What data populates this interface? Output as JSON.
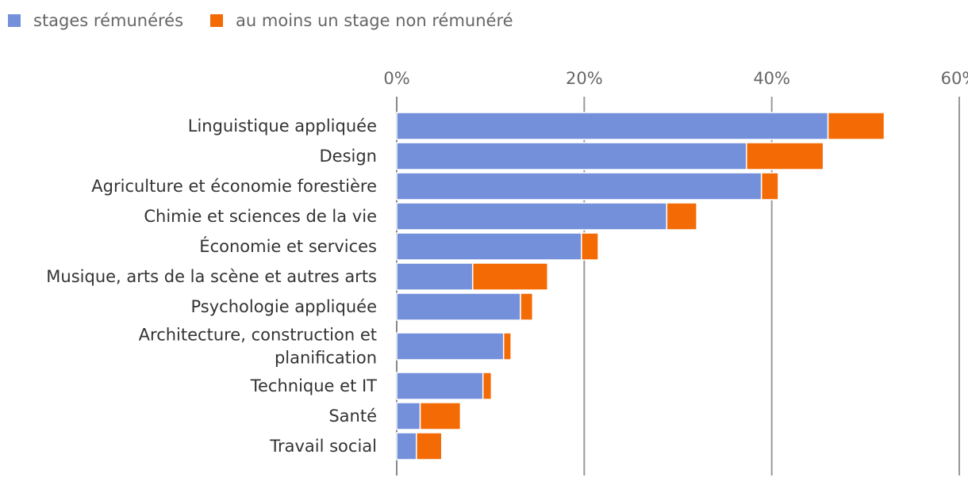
{
  "chart_data": {
    "type": "bar",
    "orientation": "horizontal",
    "stacked": true,
    "title": "",
    "xlabel": "",
    "ylabel": "",
    "xlim": [
      0,
      60
    ],
    "ticks": [
      "0%",
      "20%",
      "40%",
      "60%"
    ],
    "tick_values": [
      0,
      20,
      40,
      60
    ],
    "legend_position": "top-left",
    "categories": [
      [
        "Linguistique appliquée"
      ],
      [
        "Design"
      ],
      [
        "Agriculture et économie forestière"
      ],
      [
        "Chimie et sciences de la vie"
      ],
      [
        "Économie et services"
      ],
      [
        "Musique, arts de la scène et autres arts"
      ],
      [
        "Psychologie appliquée"
      ],
      [
        "Architecture, construction et",
        "planification"
      ],
      [
        "Technique et IT"
      ],
      [
        "Santé"
      ],
      [
        "Travail social"
      ]
    ],
    "series": [
      {
        "name": "stages rémunérés",
        "color": "#7490db",
        "values": [
          46.0,
          37.3,
          38.9,
          28.8,
          19.7,
          8.1,
          13.2,
          11.4,
          9.2,
          2.5,
          2.1
        ]
      },
      {
        "name": "au moins un stage non rémunéré",
        "color": "#f46a05",
        "values": [
          6.0,
          8.2,
          1.8,
          3.2,
          1.8,
          8.0,
          1.3,
          0.8,
          0.9,
          4.3,
          2.7
        ]
      }
    ]
  }
}
